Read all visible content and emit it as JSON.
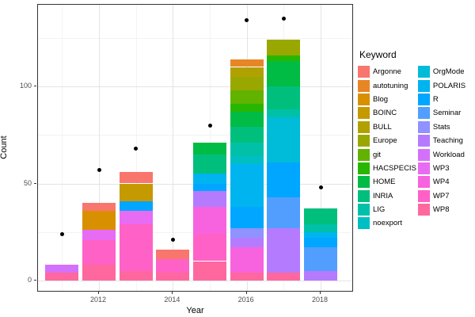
{
  "chart_data": {
    "type": "bar",
    "stacked": true,
    "xlabel": "Year",
    "ylabel": "Count",
    "x_ticks": [
      2012,
      2014,
      2016,
      2018
    ],
    "x_minor": [
      2011,
      2013,
      2015,
      2017
    ],
    "y_ticks": [
      0,
      50,
      100
    ],
    "y_minor": [
      25,
      75,
      125
    ],
    "ylim": [
      0,
      143
    ],
    "xlim": [
      2010.35,
      2018.9
    ],
    "grid": true,
    "legend": {
      "title": "Keyword",
      "position": "right",
      "column_split": 12
    },
    "palette": {
      "Argonne": "#F8766D",
      "autotuning": "#E88526",
      "Blog": "#D89000",
      "BOINC": "#C59900",
      "BULL": "#B0A100",
      "Europe": "#99A800",
      "git": "#62B200",
      "HACSPECIS": "#27B700",
      "HOME": "#00BB44",
      "INRIA": "#00BF7D",
      "LIG": "#00C1A7",
      "noexport": "#00BFC4",
      "OrgMode": "#00BCD8",
      "POLARIS": "#00B4EF",
      "R": "#00A6FF",
      "Seminar": "#529EFF",
      "Stats": "#9092FF",
      "Teaching": "#B57BFF",
      "Workload": "#D371FB",
      "WP3": "#E86BF3",
      "WP4": "#F763DF",
      "WP7": "#FF61C7",
      "WP8": "#FF689E"
    },
    "legend_order": [
      "Argonne",
      "autotuning",
      "Blog",
      "BOINC",
      "BULL",
      "Europe",
      "git",
      "HACSPECIS",
      "HOME",
      "INRIA",
      "LIG",
      "noexport",
      "OrgMode",
      "POLARIS",
      "R",
      "Seminar",
      "Stats",
      "Teaching",
      "Workload",
      "WP3",
      "WP4",
      "WP7",
      "WP8"
    ],
    "bars": [
      {
        "year": 2011,
        "total": 8,
        "segments_bottom_to_top": [
          {
            "keyword": "WP8",
            "value": 4
          },
          {
            "keyword": "Workload",
            "value": 4
          }
        ]
      },
      {
        "year": 2012,
        "total": 40,
        "segments_bottom_to_top": [
          {
            "keyword": "WP8",
            "value": 8
          },
          {
            "keyword": "WP7",
            "value": 13
          },
          {
            "keyword": "WP3",
            "value": 5
          },
          {
            "keyword": "Blog",
            "value": 10
          },
          {
            "keyword": "Argonne",
            "value": 4
          }
        ]
      },
      {
        "year": 2013,
        "total": 56,
        "segments_bottom_to_top": [
          {
            "keyword": "WP8",
            "value": 5
          },
          {
            "keyword": "WP7",
            "value": 24
          },
          {
            "keyword": "WP3",
            "value": 7
          },
          {
            "keyword": "R",
            "value": 5
          },
          {
            "keyword": "BOINC",
            "value": 9
          },
          {
            "keyword": "Argonne",
            "value": 6
          }
        ]
      },
      {
        "year": 2014,
        "total": 16,
        "segments_bottom_to_top": [
          {
            "keyword": "WP8",
            "value": 4
          },
          {
            "keyword": "WP7",
            "value": 7
          },
          {
            "keyword": "Argonne",
            "value": 5
          }
        ]
      },
      {
        "year": 2015,
        "total": 71,
        "segments_bottom_to_top": [
          {
            "keyword": "WP8",
            "value": 10
          },
          {
            "keyword": "WP7",
            "value": 14
          },
          {
            "keyword": "WP4",
            "value": 14
          },
          {
            "keyword": "Teaching",
            "value": 8
          },
          {
            "keyword": "R",
            "value": 4
          },
          {
            "keyword": "POLARIS",
            "value": 5
          },
          {
            "keyword": "INRIA",
            "value": 10
          },
          {
            "keyword": "HOME",
            "value": 6
          }
        ]
      },
      {
        "year": 2016,
        "total": 114,
        "segments_bottom_to_top": [
          {
            "keyword": "WP8",
            "value": 4
          },
          {
            "keyword": "WP4",
            "value": 13
          },
          {
            "keyword": "Teaching",
            "value": 5
          },
          {
            "keyword": "Stats",
            "value": 5
          },
          {
            "keyword": "R",
            "value": 11
          },
          {
            "keyword": "POLARIS",
            "value": 22
          },
          {
            "keyword": "noexport",
            "value": 4
          },
          {
            "keyword": "LIG",
            "value": 7
          },
          {
            "keyword": "INRIA",
            "value": 8
          },
          {
            "keyword": "HOME",
            "value": 8
          },
          {
            "keyword": "HACSPECIS",
            "value": 4
          },
          {
            "keyword": "git",
            "value": 7
          },
          {
            "keyword": "Europe",
            "value": 7
          },
          {
            "keyword": "BULL",
            "value": 5
          },
          {
            "keyword": "autotuning",
            "value": 4
          }
        ]
      },
      {
        "year": 2017,
        "total": 124,
        "segments_bottom_to_top": [
          {
            "keyword": "WP8",
            "value": 4
          },
          {
            "keyword": "Teaching",
            "value": 23
          },
          {
            "keyword": "Seminar",
            "value": 16
          },
          {
            "keyword": "R",
            "value": 18
          },
          {
            "keyword": "OrgMode",
            "value": 23
          },
          {
            "keyword": "LIG",
            "value": 4
          },
          {
            "keyword": "INRIA",
            "value": 12
          },
          {
            "keyword": "HOME",
            "value": 13
          },
          {
            "keyword": "HACSPECIS",
            "value": 3
          },
          {
            "keyword": "Europe",
            "value": 8
          }
        ]
      },
      {
        "year": 2018,
        "total": 37,
        "segments_bottom_to_top": [
          {
            "keyword": "Teaching",
            "value": 5
          },
          {
            "keyword": "Seminar",
            "value": 12
          },
          {
            "keyword": "R",
            "value": 5
          },
          {
            "keyword": "POLARIS",
            "value": 3
          },
          {
            "keyword": "LIG",
            "value": 4
          },
          {
            "keyword": "INRIA",
            "value": 8
          }
        ]
      },
      {
        "year": null,
        "total": null,
        "segments_bottom_to_top": []
      }
    ],
    "points": [
      {
        "year": 2011,
        "value": 24
      },
      {
        "year": 2012,
        "value": 57
      },
      {
        "year": 2013,
        "value": 68
      },
      {
        "year": 2014,
        "value": 21
      },
      {
        "year": 2015,
        "value": 80
      },
      {
        "year": 2016,
        "value": 134
      },
      {
        "year": 2017,
        "value": 135
      },
      {
        "year": 2018,
        "value": 48
      }
    ]
  }
}
